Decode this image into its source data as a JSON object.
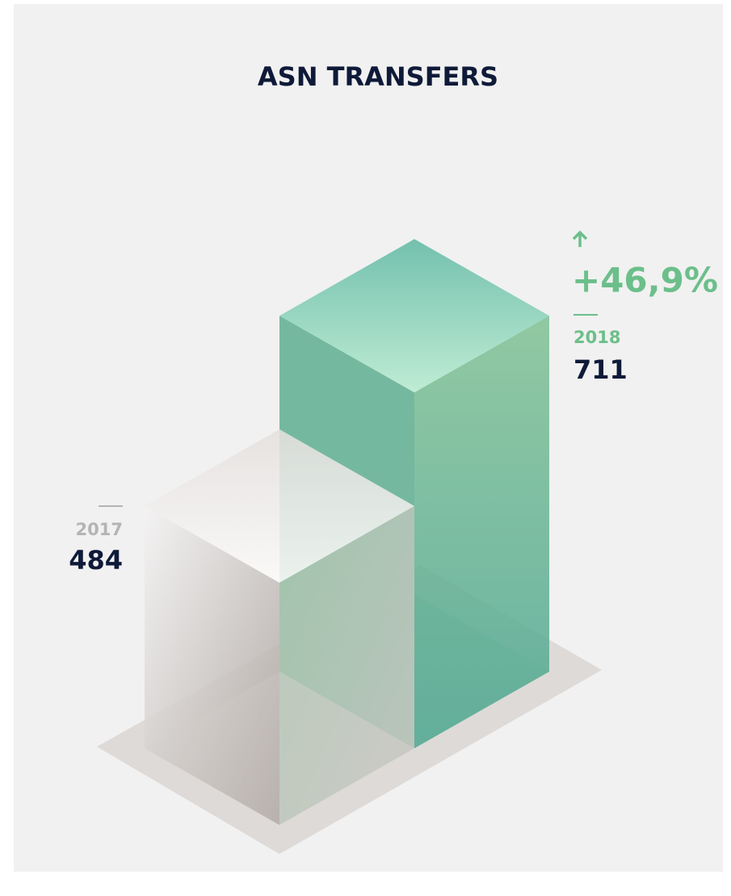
{
  "chart_data": {
    "type": "bar",
    "title": "ASN TRANSFERS",
    "categories": [
      "2017",
      "2018"
    ],
    "values": [
      484,
      711
    ],
    "colors": [
      "#d2cfcc",
      "#5fae92"
    ],
    "annotation": "+46,9%"
  }
}
